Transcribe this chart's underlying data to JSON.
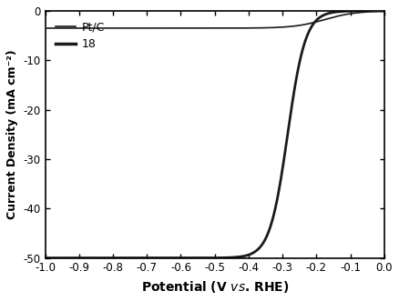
{
  "xlim": [
    -1.0,
    0.0
  ],
  "ylim": [
    -50,
    0
  ],
  "xticks": [
    -1.0,
    -0.9,
    -0.8,
    -0.7,
    -0.6,
    -0.5,
    -0.4,
    -0.3,
    -0.2,
    -0.1,
    0.0
  ],
  "yticks": [
    -50,
    -40,
    -30,
    -20,
    -10,
    0
  ],
  "xlabel_prefix": "Potential (V ",
  "xlabel_italic": "vs.",
  "xlabel_suffix": " RHE)",
  "ylabel": "Current Density (mA cm⁻²)",
  "legend_labels": [
    "Pt/C",
    "18"
  ],
  "line_color": "#1a1a1a",
  "background_color": "#ffffff",
  "curve_18_onset": -0.285,
  "curve_18_steep": 38.0,
  "curve_18_limit": -50,
  "curve_ptc_onset": -0.175,
  "curve_ptc_steep": 22.0,
  "curve_ptc_limit": -3.5,
  "curve_ptc_shape": 0.55
}
